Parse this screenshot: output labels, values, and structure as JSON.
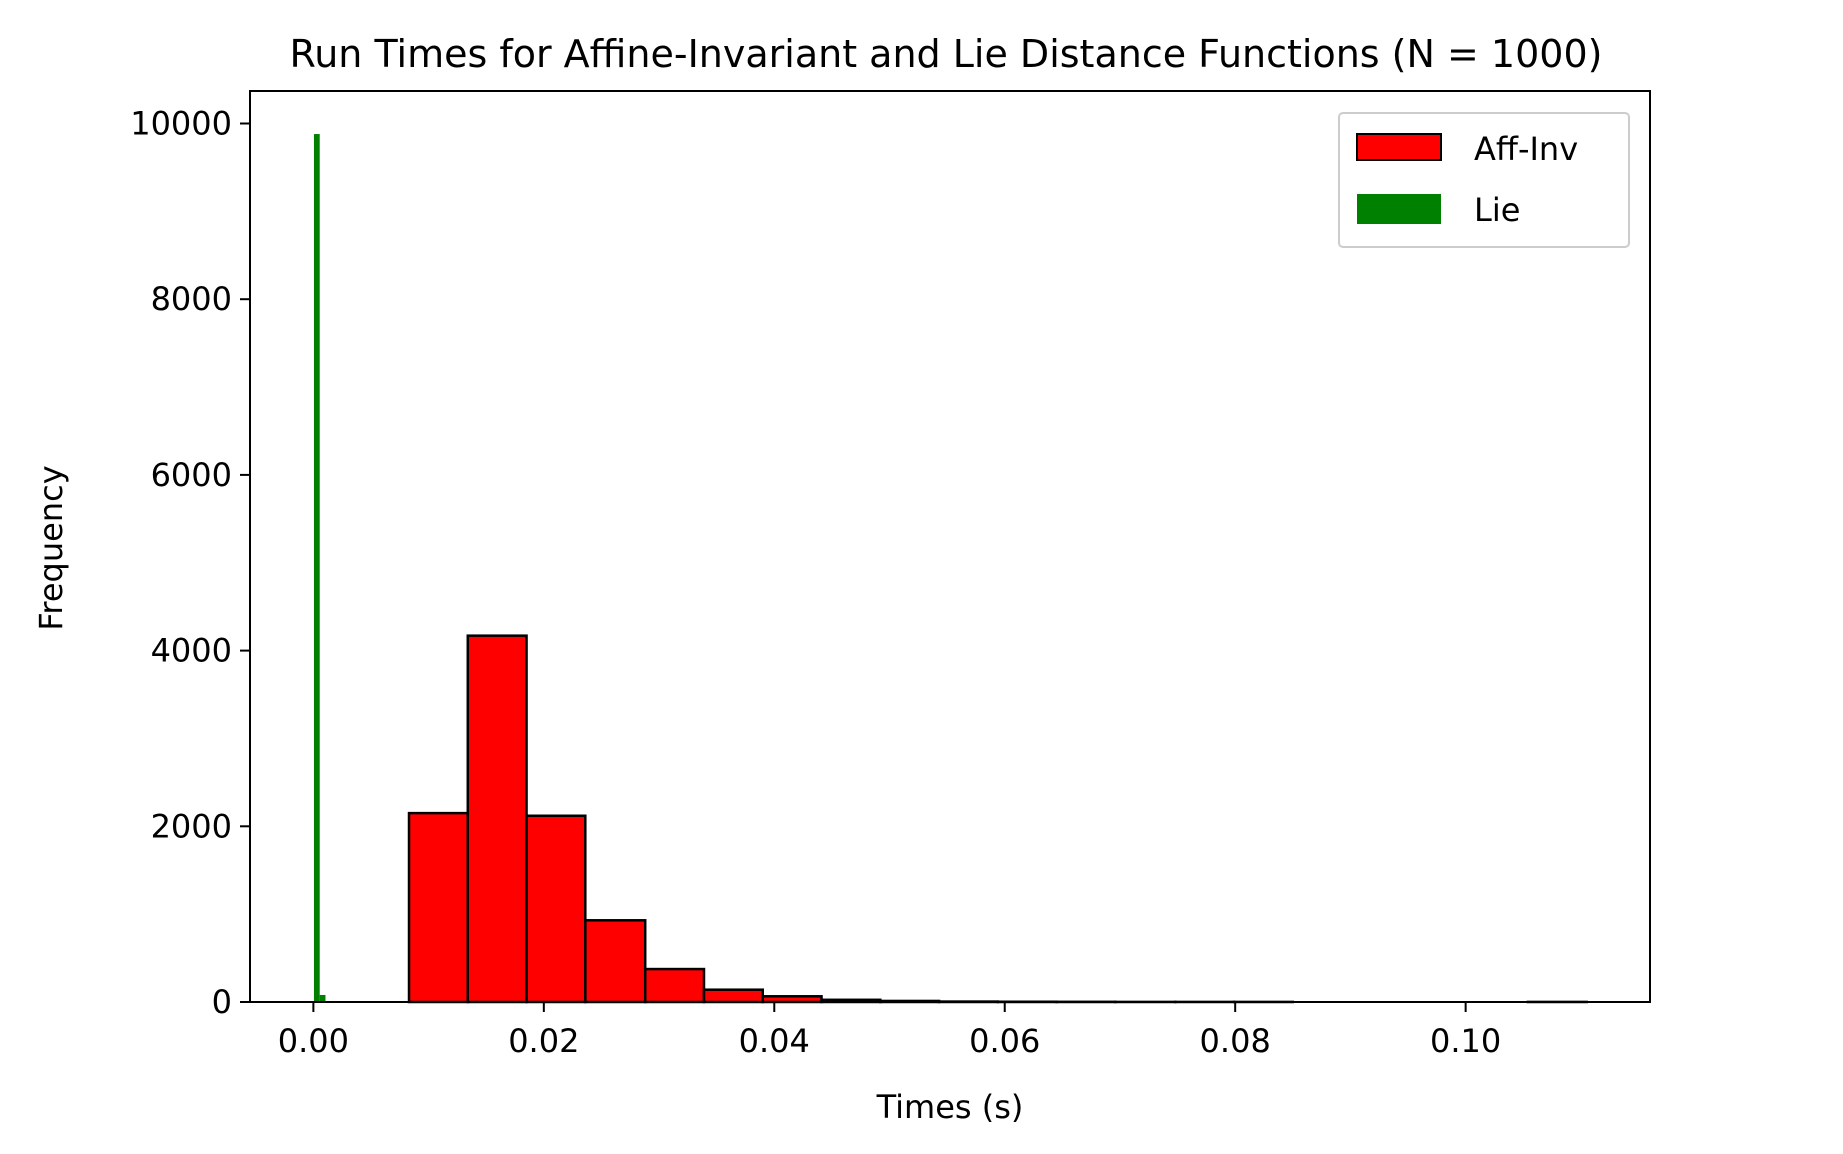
{
  "chart_data": {
    "type": "bar",
    "title": "Run Times for Affine-Invariant and Lie Distance Functions (N = 1000)",
    "xlabel": "Times (s)",
    "ylabel": "Frequency",
    "xlim": [
      -0.0055,
      0.116
    ],
    "ylim": [
      0,
      10370
    ],
    "xticks": [
      0.0,
      0.02,
      0.04,
      0.06,
      0.08,
      0.1
    ],
    "xtick_labels": [
      "0.00",
      "0.02",
      "0.04",
      "0.06",
      "0.08",
      "0.10"
    ],
    "yticks": [
      0,
      2000,
      4000,
      6000,
      8000,
      10000
    ],
    "ytick_labels": [
      "0",
      "2000",
      "4000",
      "6000",
      "8000",
      "10000"
    ],
    "grid": false,
    "legend_position": "top-right",
    "series": [
      {
        "name": "Aff-Inv",
        "color": "#ff0000",
        "edgecolor": "#000000",
        "bins": [
          {
            "x0": 0.0083,
            "x1": 0.0134,
            "count": 2150
          },
          {
            "x0": 0.0134,
            "x1": 0.0185,
            "count": 4170
          },
          {
            "x0": 0.0185,
            "x1": 0.0236,
            "count": 2120
          },
          {
            "x0": 0.0236,
            "x1": 0.0288,
            "count": 930
          },
          {
            "x0": 0.0288,
            "x1": 0.0339,
            "count": 375
          },
          {
            "x0": 0.0339,
            "x1": 0.039,
            "count": 140
          },
          {
            "x0": 0.039,
            "x1": 0.0441,
            "count": 65
          },
          {
            "x0": 0.0441,
            "x1": 0.0492,
            "count": 25
          },
          {
            "x0": 0.0492,
            "x1": 0.0543,
            "count": 12
          },
          {
            "x0": 0.0543,
            "x1": 0.0594,
            "count": 5
          },
          {
            "x0": 0.0594,
            "x1": 0.0645,
            "count": 3
          },
          {
            "x0": 0.0645,
            "x1": 0.0696,
            "count": 2
          },
          {
            "x0": 0.0696,
            "x1": 0.0748,
            "count": 1
          },
          {
            "x0": 0.0748,
            "x1": 0.0799,
            "count": 1
          },
          {
            "x0": 0.0799,
            "x1": 0.085,
            "count": 1
          },
          {
            "x0": 0.085,
            "x1": 0.0901,
            "count": 0
          },
          {
            "x0": 0.0901,
            "x1": 0.0952,
            "count": 0
          },
          {
            "x0": 0.0952,
            "x1": 0.1003,
            "count": 0
          },
          {
            "x0": 0.1003,
            "x1": 0.1054,
            "count": 0
          },
          {
            "x0": 0.1054,
            "x1": 0.1105,
            "count": 1
          }
        ]
      },
      {
        "name": "Lie",
        "color": "#008000",
        "bins": [
          {
            "x0": 5e-05,
            "x1": 0.00055,
            "count": 9880
          },
          {
            "x0": 0.00055,
            "x1": 0.00105,
            "count": 80
          }
        ]
      }
    ]
  }
}
